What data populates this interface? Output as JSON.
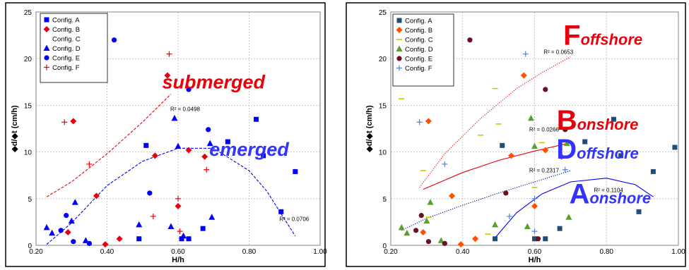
{
  "chart_data": [
    {
      "type": "scatter",
      "xlabel": "H/h",
      "ylabel": "◆d/◆t (cm/h)",
      "xlim": [
        0.2,
        1.0
      ],
      "ylim": [
        0,
        25
      ],
      "xticks": [
        "0.20",
        "0.40",
        "0.60",
        "0.80",
        "1.00"
      ],
      "yticks": [
        "0",
        "5",
        "10",
        "15",
        "20",
        "25"
      ],
      "grid": true,
      "legend": "top-left",
      "series": [
        {
          "name": "Config. A",
          "marker": "square",
          "color": "#0000ff",
          "points": [
            [
              0.49,
              0.7
            ],
            [
              0.51,
              10.7
            ],
            [
              0.61,
              0.7
            ],
            [
              0.63,
              0.7
            ],
            [
              0.67,
              1.8
            ],
            [
              0.74,
              11.1
            ],
            [
              0.82,
              13.5
            ],
            [
              0.84,
              9.6
            ],
            [
              0.89,
              3.6
            ],
            [
              0.93,
              7.9
            ]
          ]
        },
        {
          "name": "Config. B",
          "marker": "diamond",
          "color": "#e8000b",
          "points": [
            [
              0.29,
              1.4
            ],
            [
              0.305,
              13.3
            ],
            [
              0.37,
              5.3
            ],
            [
              0.395,
              0.1
            ],
            [
              0.435,
              0.7
            ],
            [
              0.535,
              9.6
            ],
            [
              0.57,
              18.2
            ],
            [
              0.6,
              4.2
            ],
            [
              0.63,
              10.2
            ],
            [
              0.675,
              9.5
            ]
          ]
        },
        {
          "name": "Config. C",
          "marker": "none",
          "color": "#000000",
          "points": []
        },
        {
          "name": "Config. D",
          "marker": "triangle",
          "color": "#0000ff",
          "points": [
            [
              0.23,
              1.9
            ],
            [
              0.245,
              1.3
            ],
            [
              0.3,
              2.6
            ],
            [
              0.31,
              4.6
            ],
            [
              0.34,
              0.5
            ],
            [
              0.49,
              2.2
            ],
            [
              0.58,
              2.0
            ],
            [
              0.59,
              13.6
            ],
            [
              0.6,
              10.6
            ],
            [
              0.615,
              1.0
            ],
            [
              0.695,
              3.0
            ],
            [
              0.69,
              10.9
            ]
          ]
        },
        {
          "name": "Config. E",
          "marker": "circle",
          "color": "#0000ff",
          "points": [
            [
              0.27,
              1.6
            ],
            [
              0.285,
              3.2
            ],
            [
              0.305,
              0.4
            ],
            [
              0.35,
              0.2
            ],
            [
              0.42,
              22.0
            ],
            [
              0.52,
              5.6
            ],
            [
              0.63,
              16.7
            ],
            [
              0.685,
              12.4
            ]
          ]
        },
        {
          "name": "Config. F",
          "marker": "plus",
          "color": "#e8000b",
          "points": [
            [
              0.28,
              13.2
            ],
            [
              0.35,
              8.7
            ],
            [
              0.53,
              3.1
            ],
            [
              0.575,
              20.5
            ],
            [
              0.6,
              5.0
            ],
            [
              0.605,
              1.5
            ],
            [
              0.68,
              8.1
            ]
          ]
        }
      ],
      "trendlines": [
        {
          "series": "Config. F",
          "style": "dashed",
          "color": "#e8000b",
          "r2": "R² = 0.0498",
          "points": [
            [
              0.23,
              5.2
            ],
            [
              0.3,
              6.8
            ],
            [
              0.4,
              9.8
            ],
            [
              0.5,
              13.2
            ],
            [
              0.58,
              16.2
            ]
          ]
        },
        {
          "series": "Config. D",
          "style": "dashed",
          "color": "#0000ff",
          "r2": "R² = 0.0706",
          "points": [
            [
              0.23,
              0.1
            ],
            [
              0.3,
              2.4
            ],
            [
              0.4,
              6.4
            ],
            [
              0.5,
              9.0
            ],
            [
              0.6,
              10.4
            ],
            [
              0.7,
              10.4
            ],
            [
              0.8,
              8.0
            ],
            [
              0.85,
              5.8
            ],
            [
              0.93,
              1.0
            ]
          ]
        }
      ],
      "annotations": [
        {
          "text": "submerged",
          "color": "#e8000b",
          "x": 0.7,
          "y": 16.8
        },
        {
          "text": "emerged",
          "color": "#3333ff",
          "x": 0.8,
          "y": 9.6
        }
      ],
      "r2_labels": [
        {
          "text": "R² = 0.0498",
          "x": 0.578,
          "y": 14.4
        },
        {
          "text": "R² = 0.0706",
          "x": 0.885,
          "y": 2.6
        }
      ]
    },
    {
      "type": "scatter",
      "xlabel": "H/h",
      "ylabel": "◆d/◆t (cm/h)",
      "xlim": [
        0.2,
        1.0
      ],
      "ylim": [
        0,
        25
      ],
      "xticks": [
        "0.20",
        "0.40",
        "0.60",
        "0.80",
        "1.00"
      ],
      "yticks": [
        "0",
        "5",
        "10",
        "15",
        "20",
        "25"
      ],
      "grid": true,
      "legend": "top-left",
      "series": [
        {
          "name": "Config. A",
          "marker": "square",
          "color": "#1f4e79",
          "points": [
            [
              0.49,
              0.7
            ],
            [
              0.51,
              10.7
            ],
            [
              0.6,
              0.7
            ],
            [
              0.63,
              0.7
            ],
            [
              0.67,
              1.8
            ],
            [
              0.74,
              11.1
            ],
            [
              0.82,
              13.5
            ],
            [
              0.84,
              9.6
            ],
            [
              0.89,
              3.6
            ],
            [
              0.93,
              7.9
            ],
            [
              0.99,
              10.5
            ]
          ]
        },
        {
          "name": "Config. B",
          "marker": "diamond",
          "color": "#ff4f00",
          "points": [
            [
              0.29,
              1.4
            ],
            [
              0.305,
              13.3
            ],
            [
              0.37,
              5.3
            ],
            [
              0.395,
              0.1
            ],
            [
              0.435,
              0.7
            ],
            [
              0.535,
              9.6
            ],
            [
              0.57,
              18.2
            ],
            [
              0.6,
              4.2
            ],
            [
              0.63,
              10.2
            ],
            [
              0.675,
              9.5
            ]
          ]
        },
        {
          "name": "Config. C",
          "marker": "dash",
          "color": "#c8c800",
          "points": [
            [
              0.23,
              15.7
            ],
            [
              0.29,
              8.0
            ],
            [
              0.305,
              3.0
            ],
            [
              0.45,
              11.8
            ],
            [
              0.47,
              1.2
            ],
            [
              0.49,
              16.8
            ],
            [
              0.5,
              13.0
            ],
            [
              0.6,
              6.2
            ],
            [
              0.62,
              11.0
            ]
          ]
        },
        {
          "name": "Config. D",
          "marker": "triangle",
          "color": "#5aa02c",
          "points": [
            [
              0.23,
              1.9
            ],
            [
              0.245,
              1.3
            ],
            [
              0.3,
              2.6
            ],
            [
              0.31,
              4.6
            ],
            [
              0.34,
              0.5
            ],
            [
              0.49,
              2.2
            ],
            [
              0.58,
              2.0
            ],
            [
              0.59,
              13.6
            ],
            [
              0.6,
              10.6
            ],
            [
              0.695,
              3.0
            ],
            [
              0.69,
              10.9
            ]
          ]
        },
        {
          "name": "Config. E",
          "marker": "circle",
          "color": "#6b0f24",
          "points": [
            [
              0.27,
              1.6
            ],
            [
              0.285,
              3.2
            ],
            [
              0.305,
              0.4
            ],
            [
              0.35,
              0.2
            ],
            [
              0.42,
              22.0
            ],
            [
              0.52,
              5.6
            ],
            [
              0.61,
              0.7
            ],
            [
              0.63,
              16.7
            ],
            [
              0.685,
              12.4
            ]
          ]
        },
        {
          "name": "Config. F",
          "marker": "plus",
          "color": "#4f7fe0",
          "points": [
            [
              0.28,
              13.2
            ],
            [
              0.35,
              8.7
            ],
            [
              0.53,
              3.1
            ],
            [
              0.575,
              20.5
            ],
            [
              0.6,
              1.5
            ],
            [
              0.6,
              5.0
            ],
            [
              0.685,
              8.1
            ]
          ]
        }
      ],
      "trendlines": [
        {
          "series": "Config. B",
          "style": "solid",
          "color": "#e8000b",
          "r2": "R² = 0.0266",
          "points": [
            [
              0.29,
              6.0
            ],
            [
              0.4,
              7.8
            ],
            [
              0.5,
              9.1
            ],
            [
              0.6,
              10.1
            ],
            [
              0.69,
              10.9
            ]
          ]
        },
        {
          "series": "Config. F",
          "style": "dotted",
          "color": "#e8000b",
          "r2": "R² = 0.0653",
          "points": [
            [
              0.28,
              6.2
            ],
            [
              0.35,
              9.8
            ],
            [
              0.45,
              13.6
            ],
            [
              0.55,
              16.8
            ],
            [
              0.62,
              18.5
            ],
            [
              0.7,
              20.2
            ]
          ]
        },
        {
          "series": "Config. D",
          "style": "dotted",
          "color": "#00008b",
          "r2": "R² = 0.2317",
          "points": [
            [
              0.23,
              1.6
            ],
            [
              0.3,
              2.9
            ],
            [
              0.4,
              4.3
            ],
            [
              0.5,
              5.6
            ],
            [
              0.6,
              6.8
            ],
            [
              0.7,
              8.0
            ]
          ]
        },
        {
          "series": "Config. A",
          "style": "solid",
          "color": "#0000ff",
          "r2": "R² = 0.1104",
          "points": [
            [
              0.49,
              0.8
            ],
            [
              0.55,
              3.5
            ],
            [
              0.62,
              5.5
            ],
            [
              0.7,
              6.8
            ],
            [
              0.8,
              7.2
            ],
            [
              0.88,
              6.5
            ],
            [
              0.93,
              5.2
            ]
          ]
        }
      ],
      "annotations": [
        {
          "letter": "F",
          "rest": "offshore",
          "color": "#e8000b",
          "x": 0.79,
          "y": 21.5
        },
        {
          "letter": "B",
          "rest": "onshore",
          "color": "#e8000b",
          "x": 0.775,
          "y": 12.4
        },
        {
          "letter": "D",
          "rest": "offshore",
          "color": "#3333ff",
          "x": 0.775,
          "y": 9.3
        },
        {
          "letter": "A",
          "rest": "onshore",
          "color": "#3333ff",
          "x": 0.81,
          "y": 4.5
        }
      ],
      "r2_labels": [
        {
          "text": "R² = 0.0653",
          "x": 0.625,
          "y": 20.5
        },
        {
          "text": "R² = 0.0266",
          "x": 0.585,
          "y": 12.2
        },
        {
          "text": "R² = 0.2317",
          "x": 0.585,
          "y": 7.8
        },
        {
          "text": "R² = 0.1104",
          "x": 0.765,
          "y": 5.7
        }
      ]
    }
  ]
}
